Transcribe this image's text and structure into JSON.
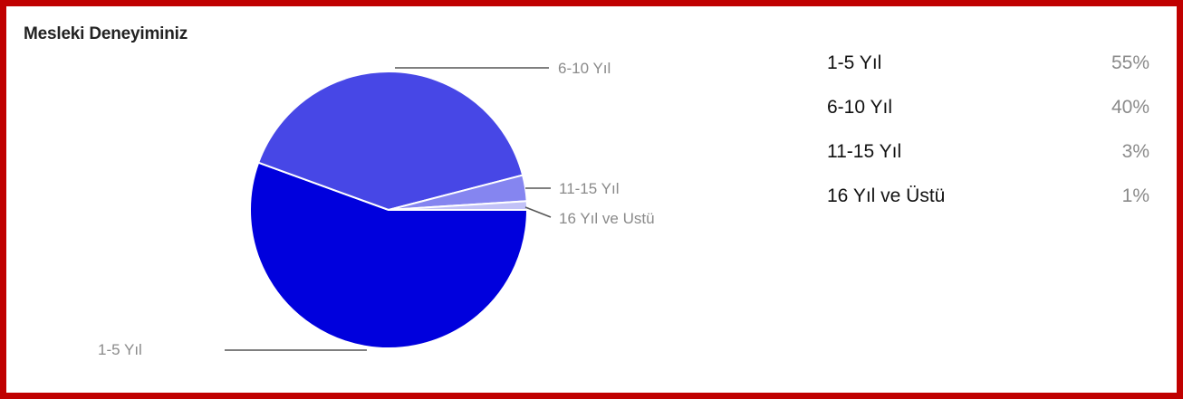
{
  "title": "Mesleki Deneyiminiz",
  "chart_data": {
    "type": "pie",
    "title": "Mesleki Deneyiminiz",
    "slices": [
      {
        "label": "1-5 Yıl",
        "value": 55,
        "percent": "55%",
        "color": "#0000dd"
      },
      {
        "label": "6-10 Yıl",
        "value": 40,
        "percent": "40%",
        "color": "#4747e6"
      },
      {
        "label": "11-15 Yıl",
        "value": 3,
        "percent": "3%",
        "color": "#8585f0"
      },
      {
        "label": "16 Yıl ve Üstü",
        "value": 1,
        "percent": "1%",
        "color": "#c2c2f7"
      }
    ],
    "callout_labels": [
      "1-5 Yıl",
      "6-10 Yıl",
      "11-15 Yıl",
      "16 Yıl ve Ustü"
    ],
    "legend_position": "right"
  },
  "colors": {
    "border": "#c00000",
    "callout_text": "#8a8a8a",
    "leader_line": "#555555"
  }
}
